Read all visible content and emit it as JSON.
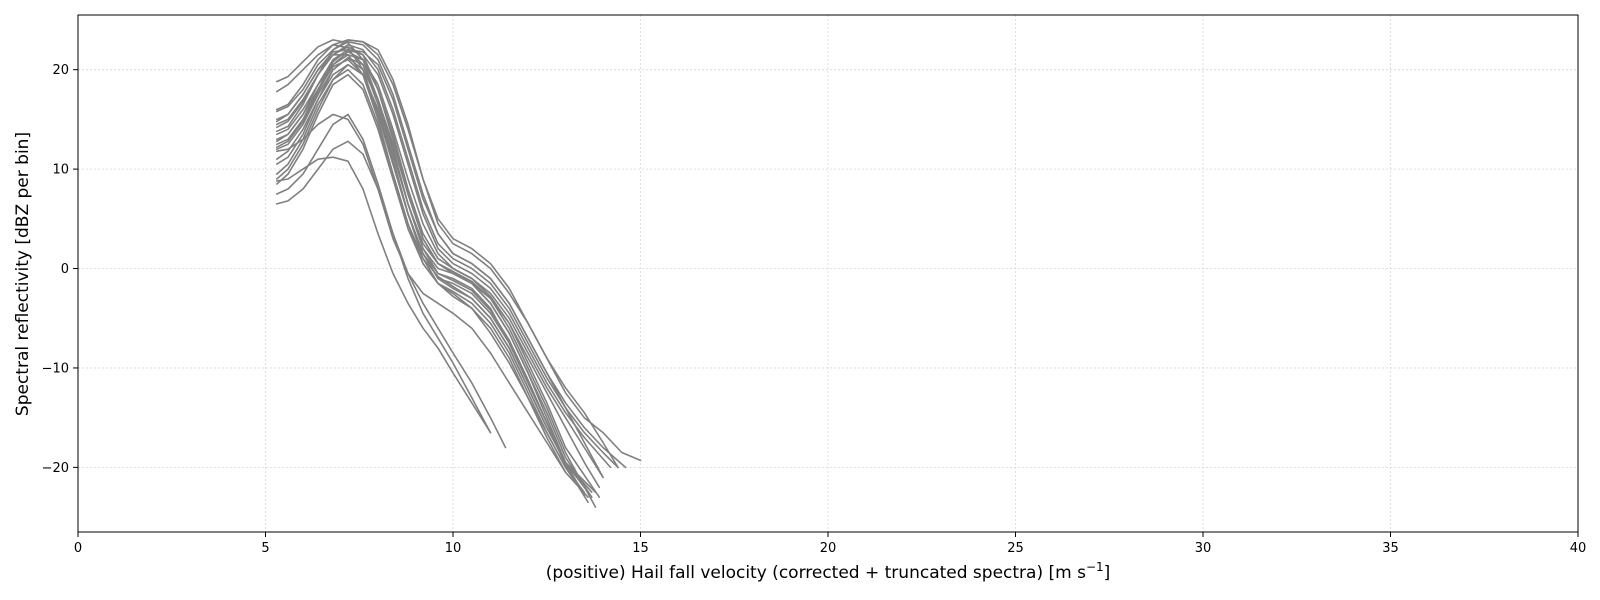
{
  "chart_data": {
    "type": "line",
    "title": "",
    "xlabel": "(positive) Hail fall velocity (corrected + truncated spectra) [m s",
    "xlabel_sup": "−1",
    "xlabel_suffix": "]",
    "ylabel": "Spectral reflectivity [dBZ per bin]",
    "xlim": [
      0,
      40
    ],
    "ylim": [
      -26.5,
      25.5
    ],
    "xticks": [
      0,
      5,
      10,
      15,
      20,
      25,
      30,
      35,
      40
    ],
    "yticks": [
      -20,
      -10,
      0,
      10,
      20
    ],
    "xtick_labels": [
      "0",
      "5",
      "10",
      "15",
      "20",
      "25",
      "30",
      "35",
      "40"
    ],
    "ytick_labels": [
      "−20",
      "−10",
      "0",
      "10",
      "20"
    ],
    "grid": true,
    "legend": "none",
    "line_color": "#808080",
    "series": [
      {
        "x": [
          5.3,
          5.6,
          6.0,
          6.4,
          6.8,
          7.2,
          7.6,
          8.0,
          8.4,
          8.8,
          9.2,
          9.6,
          10.0,
          10.5,
          11.0,
          11.5,
          12.0,
          12.5,
          13.0,
          13.5
        ],
        "y": [
          18.8,
          19.3,
          20.8,
          22.3,
          23.0,
          22.7,
          21.0,
          17.0,
          12.0,
          6.5,
          2.5,
          0.5,
          -0.3,
          -1.5,
          -3.5,
          -6.5,
          -10.5,
          -15.0,
          -19.5,
          -22.8
        ]
      },
      {
        "x": [
          5.3,
          5.6,
          6.0,
          6.4,
          6.8,
          7.2,
          7.6,
          8.0,
          8.4,
          8.8,
          9.2,
          9.6,
          10.0,
          10.5,
          11.0,
          11.5,
          12.0,
          12.5,
          13.0,
          13.6
        ],
        "y": [
          16.0,
          16.5,
          18.5,
          21.0,
          22.5,
          22.2,
          20.0,
          15.5,
          10.5,
          5.5,
          1.5,
          -0.5,
          -1.0,
          -2.0,
          -4.0,
          -7.5,
          -11.5,
          -15.5,
          -19.5,
          -22.5
        ]
      },
      {
        "x": [
          5.3,
          5.6,
          6.0,
          6.4,
          6.8,
          7.2,
          7.6,
          8.0,
          8.4,
          8.8,
          9.2,
          9.6,
          10.0,
          10.5,
          11.0,
          11.5,
          12.0,
          12.5,
          13.0,
          13.7
        ],
        "y": [
          15.0,
          15.5,
          17.5,
          20.0,
          21.8,
          22.0,
          20.5,
          16.5,
          11.5,
          6.5,
          2.0,
          0.0,
          -0.5,
          -1.5,
          -3.5,
          -6.5,
          -10.5,
          -14.5,
          -19.0,
          -23.0
        ]
      },
      {
        "x": [
          5.3,
          5.6,
          6.0,
          6.4,
          6.8,
          7.2,
          7.6,
          8.0,
          8.4,
          8.8,
          9.2,
          9.6,
          10.0,
          10.5,
          11.0,
          11.5,
          12.0,
          12.5,
          13.0,
          13.8
        ],
        "y": [
          14.2,
          14.8,
          16.8,
          19.5,
          21.5,
          22.3,
          21.5,
          18.0,
          13.0,
          7.5,
          3.0,
          0.5,
          -0.3,
          -1.3,
          -3.0,
          -6.0,
          -10.0,
          -14.0,
          -18.5,
          -24.0
        ]
      },
      {
        "x": [
          5.3,
          5.6,
          6.0,
          6.4,
          6.8,
          7.2,
          7.6,
          8.0,
          8.4,
          8.8,
          9.2,
          9.6,
          10.0,
          10.5,
          11.0,
          11.5,
          12.0,
          12.5,
          13.0,
          13.9
        ],
        "y": [
          13.5,
          14.0,
          16.0,
          18.5,
          20.5,
          21.5,
          21.0,
          18.0,
          13.5,
          8.0,
          3.5,
          1.0,
          0.0,
          -1.0,
          -2.8,
          -5.5,
          -9.5,
          -13.5,
          -18.0,
          -23.0
        ]
      },
      {
        "x": [
          5.3,
          5.6,
          6.0,
          6.4,
          6.8,
          7.2,
          7.6,
          8.0,
          8.4,
          8.8,
          9.2,
          9.6,
          10.0,
          10.5,
          11.0,
          11.5,
          12.0,
          12.5,
          13.0,
          13.8
        ],
        "y": [
          12.8,
          13.5,
          15.5,
          18.0,
          20.3,
          21.0,
          19.5,
          15.5,
          10.5,
          5.5,
          1.5,
          -1.0,
          -1.5,
          -2.5,
          -4.5,
          -7.5,
          -11.5,
          -15.5,
          -19.5,
          -22.5
        ]
      },
      {
        "x": [
          5.3,
          5.6,
          6.0,
          6.4,
          6.8,
          7.2,
          7.6,
          8.0,
          8.4,
          8.8,
          9.2,
          9.6,
          10.0,
          10.5,
          11.0,
          11.5,
          12.0,
          12.5,
          13.0,
          13.6
        ],
        "y": [
          12.0,
          12.5,
          14.5,
          17.5,
          20.0,
          21.2,
          20.5,
          17.0,
          12.0,
          6.5,
          2.0,
          -0.5,
          -1.2,
          -2.2,
          -4.2,
          -7.2,
          -11.2,
          -15.5,
          -19.8,
          -23.5
        ]
      },
      {
        "x": [
          5.3,
          5.6,
          6.0,
          6.4,
          6.8,
          7.2,
          7.6,
          8.0,
          8.4,
          8.8,
          9.2,
          9.6,
          10.0,
          10.5,
          11.0,
          11.5,
          12.0,
          12.5,
          13.0,
          13.7
        ],
        "y": [
          11.0,
          11.8,
          14.0,
          17.0,
          19.5,
          20.5,
          19.5,
          16.0,
          11.0,
          5.5,
          1.5,
          -1.0,
          -2.0,
          -3.0,
          -5.0,
          -8.0,
          -12.0,
          -16.0,
          -19.5,
          -22.5
        ]
      },
      {
        "x": [
          5.3,
          5.6,
          6.0,
          6.4,
          6.8,
          7.2,
          7.6,
          8.0,
          8.4,
          8.8,
          9.2,
          9.6,
          10.0,
          10.5,
          11.0,
          11.5,
          12.0,
          12.5,
          13.0,
          13.5
        ],
        "y": [
          9.5,
          10.5,
          13.0,
          16.5,
          19.0,
          20.0,
          18.5,
          14.5,
          9.5,
          4.5,
          0.5,
          -1.5,
          -2.3,
          -3.5,
          -5.5,
          -8.5,
          -12.5,
          -16.5,
          -20.0,
          -22.8
        ]
      },
      {
        "x": [
          5.3,
          5.6,
          6.0,
          6.4,
          6.8,
          7.2,
          7.6,
          8.0,
          8.4,
          8.8,
          9.2,
          9.6,
          10.0,
          10.5,
          11.0,
          11.5,
          12.0,
          12.5,
          13.0,
          13.6
        ],
        "y": [
          8.5,
          9.5,
          12.0,
          15.5,
          18.5,
          19.5,
          18.0,
          14.0,
          9.0,
          4.0,
          0.5,
          -1.5,
          -2.5,
          -4.0,
          -6.0,
          -9.0,
          -13.0,
          -17.0,
          -20.5,
          -23.0
        ]
      },
      {
        "x": [
          5.3,
          5.6,
          6.0,
          6.4,
          6.8,
          7.2,
          7.6,
          8.0,
          8.4,
          8.8,
          9.2,
          9.6,
          10.0,
          10.5,
          11.0
        ],
        "y": [
          7.5,
          8.0,
          9.5,
          12.0,
          14.5,
          15.5,
          13.0,
          8.5,
          3.5,
          -1.0,
          -4.5,
          -7.0,
          -9.5,
          -13.0,
          -16.5
        ]
      },
      {
        "x": [
          5.3,
          5.6,
          6.0,
          6.4,
          6.8,
          7.2,
          7.6,
          8.0,
          8.4,
          8.8,
          9.2,
          9.6,
          10.0,
          10.5,
          11.0,
          11.4
        ],
        "y": [
          6.5,
          6.8,
          8.0,
          10.0,
          12.0,
          12.8,
          11.5,
          8.0,
          3.5,
          -0.5,
          -3.5,
          -6.0,
          -8.5,
          -11.5,
          -15.0,
          -18.0
        ]
      },
      {
        "x": [
          5.3,
          5.6,
          6.0,
          6.4,
          6.8,
          7.2,
          7.6,
          8.0,
          8.4,
          8.8,
          9.2,
          9.6,
          10.0,
          10.5,
          11.0
        ],
        "y": [
          8.8,
          9.0,
          10.0,
          11.0,
          11.2,
          10.8,
          8.0,
          3.5,
          -0.5,
          -3.5,
          -6.0,
          -8.0,
          -10.5,
          -13.5,
          -16.5
        ]
      },
      {
        "x": [
          5.3,
          5.6,
          6.0,
          6.4,
          6.8,
          7.2,
          7.6,
          8.0,
          8.4,
          8.8,
          9.2,
          9.6,
          10.0,
          10.5,
          11.0,
          11.5,
          12.0,
          12.5,
          13.0,
          13.5,
          14.0,
          14.5,
          15.0
        ],
        "y": [
          17.8,
          18.5,
          20.0,
          21.5,
          22.5,
          23.0,
          22.8,
          22.0,
          19.0,
          14.5,
          9.0,
          4.5,
          2.5,
          1.5,
          0.0,
          -2.5,
          -5.5,
          -9.0,
          -12.5,
          -15.0,
          -16.5,
          -18.5,
          -19.3
        ]
      },
      {
        "x": [
          5.3,
          5.6,
          6.0,
          6.4,
          6.8,
          7.2,
          7.6,
          8.0,
          8.4,
          8.8,
          9.2,
          9.6,
          10.0,
          10.5,
          11.0,
          11.5,
          12.0,
          12.5,
          13.0,
          13.5,
          14.0,
          14.6
        ],
        "y": [
          15.8,
          16.3,
          18.0,
          20.5,
          22.0,
          22.8,
          22.5,
          21.0,
          17.5,
          12.5,
          7.5,
          3.5,
          1.5,
          0.5,
          -1.0,
          -3.5,
          -7.0,
          -10.5,
          -13.5,
          -16.0,
          -18.0,
          -20.0
        ]
      },
      {
        "x": [
          5.3,
          5.6,
          6.0,
          6.4,
          6.8,
          7.2,
          7.6,
          8.0,
          8.4,
          8.8,
          9.2,
          9.6,
          10.0,
          10.5,
          11.0,
          11.5,
          12.0,
          12.5,
          13.0,
          13.5,
          14.0,
          14.4
        ],
        "y": [
          14.5,
          15.0,
          17.0,
          19.5,
          21.5,
          22.5,
          22.0,
          20.0,
          16.0,
          11.0,
          6.0,
          2.5,
          1.0,
          0.0,
          -1.5,
          -4.0,
          -7.5,
          -11.0,
          -14.0,
          -16.5,
          -18.5,
          -20.0
        ]
      },
      {
        "x": [
          5.3,
          5.6,
          6.0,
          6.4,
          6.8,
          7.2,
          7.6,
          8.0,
          8.4,
          8.8,
          9.2,
          9.6,
          10.0,
          10.5,
          11.0,
          11.5,
          12.0,
          12.5,
          13.0,
          13.5,
          14.2
        ],
        "y": [
          13.0,
          13.5,
          15.5,
          18.5,
          21.0,
          22.0,
          21.5,
          19.5,
          15.5,
          10.5,
          5.5,
          2.0,
          0.5,
          -0.5,
          -2.0,
          -4.5,
          -8.0,
          -11.5,
          -14.5,
          -17.0,
          -20.0
        ]
      },
      {
        "x": [
          5.3,
          5.6,
          6.0,
          6.4,
          6.8,
          7.2,
          7.6,
          8.0,
          8.4,
          8.8,
          9.2,
          9.6,
          10.0,
          10.5,
          11.0,
          11.5,
          12.0,
          12.5,
          13.0,
          13.5,
          14.0
        ],
        "y": [
          12.2,
          12.8,
          14.8,
          17.8,
          20.5,
          21.8,
          21.0,
          18.5,
          14.0,
          9.0,
          4.5,
          1.5,
          0.0,
          -1.0,
          -2.5,
          -5.0,
          -8.5,
          -12.0,
          -15.0,
          -18.0,
          -21.0
        ]
      },
      {
        "x": [
          5.3,
          5.6,
          6.0,
          6.4,
          6.8,
          7.2,
          7.6,
          8.0,
          8.4,
          8.8,
          9.2,
          9.6,
          10.0,
          10.5,
          11.0,
          11.5,
          12.0,
          12.5,
          13.0,
          13.5,
          13.9
        ],
        "y": [
          10.5,
          11.2,
          13.5,
          17.0,
          20.0,
          21.2,
          20.0,
          17.0,
          12.5,
          7.5,
          3.0,
          0.5,
          -0.5,
          -1.5,
          -3.0,
          -5.5,
          -9.0,
          -12.5,
          -16.0,
          -19.5,
          -22.0
        ]
      },
      {
        "x": [
          5.3,
          5.6,
          6.0,
          6.4,
          6.8,
          7.2,
          7.6,
          8.0,
          8.4,
          8.8,
          9.2,
          9.6,
          10.0,
          10.5,
          11.0,
          11.5,
          12.0,
          12.5,
          13.0,
          13.5,
          14.0,
          14.4
        ],
        "y": [
          13.8,
          14.3,
          16.5,
          19.5,
          22.0,
          23.0,
          22.8,
          21.5,
          18.5,
          14.0,
          9.0,
          5.0,
          3.0,
          2.0,
          0.5,
          -2.0,
          -5.5,
          -9.0,
          -12.0,
          -14.5,
          -17.5,
          -20.0
        ]
      },
      {
        "x": [
          5.3,
          5.6,
          6.0,
          6.4,
          6.8,
          7.2,
          7.6,
          8.0,
          8.4,
          8.8,
          9.2,
          9.6,
          10.0,
          10.5,
          11.0,
          11.5,
          12.0,
          12.5,
          13.0,
          13.5
        ],
        "y": [
          9.0,
          10.0,
          12.5,
          16.0,
          19.0,
          20.5,
          19.5,
          16.0,
          11.0,
          5.5,
          1.0,
          -1.5,
          -2.8,
          -4.0,
          -6.5,
          -9.5,
          -13.0,
          -16.5,
          -20.0,
          -22.5
        ]
      },
      {
        "x": [
          5.3,
          5.6,
          6.0,
          6.4,
          6.8,
          7.2,
          7.6,
          8.0,
          8.4,
          8.8,
          9.2,
          9.6,
          10.0,
          10.5,
          11.0,
          11.5,
          12.0,
          12.5,
          13.0
        ],
        "y": [
          11.8,
          12.0,
          13.0,
          14.5,
          15.5,
          15.0,
          12.5,
          8.0,
          3.0,
          -0.5,
          -2.5,
          -3.5,
          -4.5,
          -6.0,
          -8.5,
          -11.5,
          -14.5,
          -17.5,
          -20.5
        ]
      },
      {
        "x": [
          5.3,
          5.6,
          6.0,
          6.4,
          6.8,
          7.2,
          7.6,
          8.0,
          8.4,
          8.8,
          9.2,
          9.6,
          10.0,
          10.5,
          11.0,
          11.5,
          12.0,
          12.5,
          13.0,
          13.5
        ],
        "y": [
          14.8,
          15.5,
          17.5,
          20.0,
          21.5,
          21.5,
          19.5,
          15.0,
          9.5,
          4.5,
          1.0,
          -0.8,
          -1.8,
          -3.0,
          -5.0,
          -8.0,
          -12.0,
          -16.0,
          -19.5,
          -22.0
        ]
      },
      {
        "x": [
          5.3,
          5.6,
          6.0,
          6.4,
          6.8,
          7.2,
          7.6,
          8.0,
          8.4,
          8.8,
          9.2,
          9.6,
          10.0,
          10.5,
          11.0,
          11.5,
          12.0,
          12.5,
          13.0,
          13.5,
          14.0
        ],
        "y": [
          12.5,
          13.0,
          15.0,
          18.0,
          20.8,
          22.0,
          21.8,
          20.5,
          17.0,
          12.0,
          7.0,
          3.5,
          1.5,
          0.5,
          -1.0,
          -3.5,
          -7.0,
          -10.5,
          -14.0,
          -17.5,
          -21.0
        ]
      }
    ]
  }
}
